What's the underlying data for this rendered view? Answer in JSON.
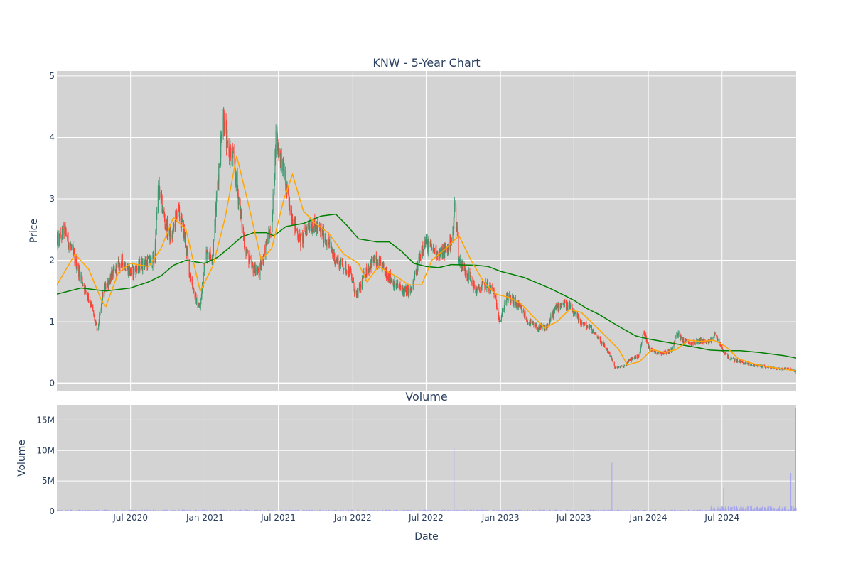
{
  "chart_data": {
    "type": "candlestick",
    "title": "KNW - 5-Year Chart",
    "colors": {
      "plot_bg": "#d3d3d3",
      "grid": "#ffffff",
      "up": "#3d9970",
      "down": "#ff4136",
      "ma_short": "#ffa500",
      "ma_long": "#008000",
      "volume": "#a3a3f0"
    },
    "price_panel": {
      "ylabel": "Price",
      "ylim": [
        -0.12,
        5.08
      ],
      "yticks": [
        0,
        1,
        2,
        3,
        4,
        5
      ],
      "ytick_labels": [
        "0",
        "1",
        "2",
        "3",
        "4",
        "5"
      ],
      "grid": true,
      "approx_close_anchors": [
        [
          "2020-01-02",
          2.3
        ],
        [
          "2020-01-20",
          2.5
        ],
        [
          "2020-02-10",
          2.1
        ],
        [
          "2020-03-01",
          1.7
        ],
        [
          "2020-03-25",
          1.3
        ],
        [
          "2020-04-10",
          0.85
        ],
        [
          "2020-04-25",
          1.5
        ],
        [
          "2020-05-15",
          1.75
        ],
        [
          "2020-06-10",
          2.0
        ],
        [
          "2020-07-01",
          1.8
        ],
        [
          "2020-08-01",
          1.95
        ],
        [
          "2020-08-28",
          2.0
        ],
        [
          "2020-09-08",
          3.2
        ],
        [
          "2020-09-25",
          2.6
        ],
        [
          "2020-10-10",
          2.35
        ],
        [
          "2020-10-25",
          2.85
        ],
        [
          "2020-11-10",
          2.45
        ],
        [
          "2020-11-25",
          1.75
        ],
        [
          "2020-12-10",
          1.35
        ],
        [
          "2020-12-20",
          1.2
        ],
        [
          "2021-01-01",
          2.1
        ],
        [
          "2021-01-20",
          2.1
        ],
        [
          "2021-02-05",
          3.6
        ],
        [
          "2021-02-15",
          4.4
        ],
        [
          "2021-02-25",
          3.8
        ],
        [
          "2021-03-10",
          3.7
        ],
        [
          "2021-03-25",
          3.0
        ],
        [
          "2021-04-10",
          2.2
        ],
        [
          "2021-04-25",
          1.9
        ],
        [
          "2021-05-15",
          1.8
        ],
        [
          "2021-06-01",
          2.3
        ],
        [
          "2021-06-15",
          2.5
        ],
        [
          "2021-06-25",
          4.0
        ],
        [
          "2021-07-10",
          3.6
        ],
        [
          "2021-07-25",
          3.0
        ],
        [
          "2021-08-10",
          2.6
        ],
        [
          "2021-08-25",
          2.3
        ],
        [
          "2021-09-15",
          2.6
        ],
        [
          "2021-10-10",
          2.5
        ],
        [
          "2021-11-01",
          2.3
        ],
        [
          "2021-11-20",
          2.0
        ],
        [
          "2021-12-10",
          1.9
        ],
        [
          "2021-12-25",
          1.8
        ],
        [
          "2022-01-10",
          1.4
        ],
        [
          "2022-02-01",
          1.8
        ],
        [
          "2022-02-20",
          2.0
        ],
        [
          "2022-03-15",
          1.9
        ],
        [
          "2022-04-15",
          1.6
        ],
        [
          "2022-05-10",
          1.5
        ],
        [
          "2022-05-25",
          1.5
        ],
        [
          "2022-06-10",
          1.9
        ],
        [
          "2022-06-25",
          2.3
        ],
        [
          "2022-07-15",
          2.2
        ],
        [
          "2022-08-05",
          2.1
        ],
        [
          "2022-08-25",
          2.2
        ],
        [
          "2022-09-05",
          2.4
        ],
        [
          "2022-09-10",
          3.0
        ],
        [
          "2022-09-20",
          2.0
        ],
        [
          "2022-10-10",
          1.8
        ],
        [
          "2022-11-01",
          1.5
        ],
        [
          "2022-11-25",
          1.6
        ],
        [
          "2022-12-15",
          1.5
        ],
        [
          "2022-12-31",
          1.0
        ],
        [
          "2023-01-15",
          1.4
        ],
        [
          "2023-02-01",
          1.35
        ],
        [
          "2023-02-20",
          1.2
        ],
        [
          "2023-03-10",
          1.0
        ],
        [
          "2023-04-01",
          0.9
        ],
        [
          "2023-04-25",
          0.9
        ],
        [
          "2023-05-15",
          1.2
        ],
        [
          "2023-06-01",
          1.3
        ],
        [
          "2023-06-20",
          1.25
        ],
        [
          "2023-07-15",
          1.0
        ],
        [
          "2023-08-10",
          0.9
        ],
        [
          "2023-08-30",
          0.75
        ],
        [
          "2023-09-15",
          0.6
        ],
        [
          "2023-09-30",
          0.45
        ],
        [
          "2023-10-10",
          0.25
        ],
        [
          "2023-11-01",
          0.27
        ],
        [
          "2023-11-20",
          0.4
        ],
        [
          "2023-12-10",
          0.45
        ],
        [
          "2023-12-20",
          0.85
        ],
        [
          "2024-01-05",
          0.55
        ],
        [
          "2024-01-25",
          0.5
        ],
        [
          "2024-02-15",
          0.5
        ],
        [
          "2024-03-01",
          0.55
        ],
        [
          "2024-03-10",
          0.85
        ],
        [
          "2024-03-25",
          0.7
        ],
        [
          "2024-04-15",
          0.65
        ],
        [
          "2024-05-10",
          0.7
        ],
        [
          "2024-05-30",
          0.65
        ],
        [
          "2024-06-15",
          0.8
        ],
        [
          "2024-07-01",
          0.55
        ],
        [
          "2024-07-20",
          0.4
        ],
        [
          "2024-08-15",
          0.35
        ],
        [
          "2024-09-10",
          0.3
        ],
        [
          "2024-10-10",
          0.28
        ],
        [
          "2024-11-01",
          0.25
        ],
        [
          "2024-11-25",
          0.23
        ],
        [
          "2024-12-10",
          0.25
        ],
        [
          "2024-12-20",
          0.22
        ],
        [
          "2024-12-31",
          0.18
        ]
      ],
      "ma_short": [
        [
          "2020-01-01",
          1.6
        ],
        [
          "2020-02-15",
          2.1
        ],
        [
          "2020-03-20",
          1.85
        ],
        [
          "2020-04-20",
          1.35
        ],
        [
          "2020-05-01",
          1.25
        ],
        [
          "2020-06-01",
          1.8
        ],
        [
          "2020-07-01",
          1.95
        ],
        [
          "2020-08-15",
          1.9
        ],
        [
          "2020-09-15",
          2.2
        ],
        [
          "2020-10-15",
          2.7
        ],
        [
          "2020-11-15",
          2.5
        ],
        [
          "2020-12-20",
          1.5
        ],
        [
          "2021-01-20",
          1.9
        ],
        [
          "2021-02-20",
          2.7
        ],
        [
          "2021-03-20",
          3.7
        ],
        [
          "2021-04-15",
          3.0
        ],
        [
          "2021-05-20",
          2.0
        ],
        [
          "2021-06-15",
          2.2
        ],
        [
          "2021-07-15",
          3.0
        ],
        [
          "2021-08-05",
          3.4
        ],
        [
          "2021-09-01",
          2.8
        ],
        [
          "2021-10-01",
          2.6
        ],
        [
          "2021-11-01",
          2.45
        ],
        [
          "2021-12-10",
          2.1
        ],
        [
          "2022-01-15",
          1.95
        ],
        [
          "2022-02-05",
          1.65
        ],
        [
          "2022-03-05",
          1.9
        ],
        [
          "2022-04-15",
          1.75
        ],
        [
          "2022-05-20",
          1.6
        ],
        [
          "2022-06-20",
          1.6
        ],
        [
          "2022-07-15",
          2.0
        ],
        [
          "2022-08-20",
          2.2
        ],
        [
          "2022-09-20",
          2.4
        ],
        [
          "2022-10-20",
          2.0
        ],
        [
          "2022-11-20",
          1.65
        ],
        [
          "2022-12-20",
          1.45
        ],
        [
          "2023-01-20",
          1.4
        ],
        [
          "2023-02-20",
          1.3
        ],
        [
          "2023-03-20",
          1.1
        ],
        [
          "2023-04-20",
          0.9
        ],
        [
          "2023-05-20",
          1.0
        ],
        [
          "2023-06-20",
          1.2
        ],
        [
          "2023-07-20",
          1.15
        ],
        [
          "2023-08-20",
          0.95
        ],
        [
          "2023-09-20",
          0.75
        ],
        [
          "2023-10-20",
          0.55
        ],
        [
          "2023-11-10",
          0.3
        ],
        [
          "2023-12-10",
          0.35
        ],
        [
          "2024-01-10",
          0.55
        ],
        [
          "2024-02-10",
          0.5
        ],
        [
          "2024-03-10",
          0.55
        ],
        [
          "2024-04-10",
          0.7
        ],
        [
          "2024-05-10",
          0.68
        ],
        [
          "2024-06-10",
          0.7
        ],
        [
          "2024-07-10",
          0.6
        ],
        [
          "2024-08-10",
          0.4
        ],
        [
          "2024-09-10",
          0.33
        ],
        [
          "2024-10-10",
          0.28
        ],
        [
          "2024-11-10",
          0.25
        ],
        [
          "2024-12-31",
          0.2
        ]
      ],
      "ma_long": [
        [
          "2020-01-01",
          1.45
        ],
        [
          "2020-03-01",
          1.55
        ],
        [
          "2020-05-01",
          1.5
        ],
        [
          "2020-07-01",
          1.55
        ],
        [
          "2020-08-15",
          1.65
        ],
        [
          "2020-09-15",
          1.75
        ],
        [
          "2020-10-15",
          1.92
        ],
        [
          "2020-11-15",
          2.0
        ],
        [
          "2020-12-31",
          1.95
        ],
        [
          "2021-02-01",
          2.05
        ],
        [
          "2021-03-01",
          2.2
        ],
        [
          "2021-04-01",
          2.38
        ],
        [
          "2021-05-01",
          2.45
        ],
        [
          "2021-06-01",
          2.45
        ],
        [
          "2021-06-20",
          2.4
        ],
        [
          "2021-07-20",
          2.55
        ],
        [
          "2021-09-01",
          2.6
        ],
        [
          "2021-10-15",
          2.72
        ],
        [
          "2021-11-20",
          2.75
        ],
        [
          "2021-12-20",
          2.55
        ],
        [
          "2022-01-15",
          2.35
        ],
        [
          "2022-03-01",
          2.3
        ],
        [
          "2022-04-01",
          2.3
        ],
        [
          "2022-05-01",
          2.15
        ],
        [
          "2022-06-01",
          1.95
        ],
        [
          "2022-07-01",
          1.9
        ],
        [
          "2022-08-01",
          1.88
        ],
        [
          "2022-09-01",
          1.93
        ],
        [
          "2022-11-01",
          1.92
        ],
        [
          "2022-12-01",
          1.9
        ],
        [
          "2023-01-01",
          1.82
        ],
        [
          "2023-03-01",
          1.72
        ],
        [
          "2023-05-01",
          1.55
        ],
        [
          "2023-06-01",
          1.45
        ],
        [
          "2023-07-01",
          1.35
        ],
        [
          "2023-08-01",
          1.22
        ],
        [
          "2023-09-01",
          1.12
        ],
        [
          "2023-10-01",
          1.0
        ],
        [
          "2023-11-01",
          0.88
        ],
        [
          "2023-12-01",
          0.77
        ],
        [
          "2024-01-01",
          0.72
        ],
        [
          "2024-03-01",
          0.65
        ],
        [
          "2024-05-01",
          0.58
        ],
        [
          "2024-06-01",
          0.54
        ],
        [
          "2024-07-01",
          0.53
        ],
        [
          "2024-08-15",
          0.53
        ],
        [
          "2024-10-01",
          0.5
        ],
        [
          "2024-12-01",
          0.45
        ],
        [
          "2024-12-31",
          0.41
        ]
      ]
    },
    "volume_panel": {
      "title": "Volume",
      "ylabel": "Volume",
      "xlabel": "Date",
      "ylim": [
        0,
        17500000
      ],
      "yticks": [
        0,
        5000000,
        10000000,
        15000000
      ],
      "ytick_labels": [
        "0",
        "5M",
        "10M",
        "15M"
      ],
      "grid": true,
      "spikes": [
        [
          "2022-09-08",
          10500000
        ],
        [
          "2023-10-03",
          8000000
        ],
        [
          "2024-07-05",
          3800000
        ],
        [
          "2024-12-18",
          6300000
        ],
        [
          "2024-12-30",
          17000000
        ]
      ]
    },
    "x_axis": {
      "range": [
        "2020-01-01",
        "2024-12-31"
      ],
      "ticks": [
        "2020-07-01",
        "2021-01-01",
        "2021-07-01",
        "2022-01-01",
        "2022-07-01",
        "2023-01-01",
        "2023-07-01",
        "2024-01-01",
        "2024-07-01"
      ],
      "tick_labels": [
        "Jul 2020",
        "Jan 2021",
        "Jul 2021",
        "Jan 2022",
        "Jul 2022",
        "Jan 2023",
        "Jul 2023",
        "Jan 2024",
        "Jul 2024"
      ]
    }
  }
}
